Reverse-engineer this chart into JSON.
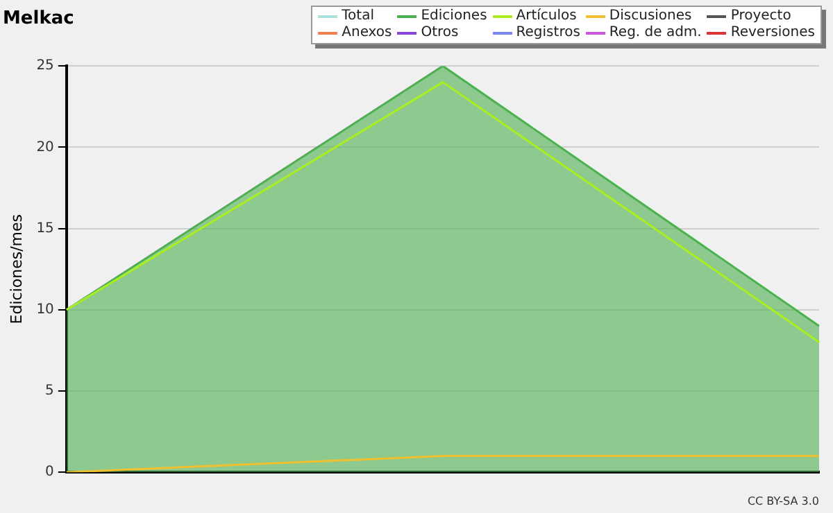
{
  "chart_data": {
    "type": "line",
    "title": "Melkac",
    "ylabel": "Ediciones/mes",
    "categories": [
      null,
      null,
      null
    ],
    "ylim": [
      0,
      25
    ],
    "yticks": [
      0,
      5,
      10,
      15,
      20,
      25
    ],
    "grid": "y",
    "legend": "top right",
    "marker": "none",
    "annotations": [
      "CC BY-SA 3.0"
    ],
    "series": [
      {
        "name": "Total",
        "color": "#a8e0e0",
        "values": [
          null,
          null,
          null
        ]
      },
      {
        "name": "Ediciones",
        "type": "area",
        "color": "#4cb050",
        "values": [
          10,
          25,
          9
        ]
      },
      {
        "name": "Artículos",
        "color": "#aaee22",
        "values": [
          10,
          24,
          8
        ]
      },
      {
        "name": "Discusiones",
        "color": "#f0c030",
        "values": [
          0,
          1,
          1
        ]
      },
      {
        "name": "Proyecto",
        "color": "#555555",
        "values": [
          null,
          null,
          null
        ]
      },
      {
        "name": "Anexos",
        "color": "#f08050",
        "values": [
          null,
          null,
          null
        ]
      },
      {
        "name": "Otros",
        "color": "#8844dd",
        "values": [
          null,
          null,
          null
        ]
      },
      {
        "name": "Registros",
        "color": "#7788ee",
        "values": [
          null,
          null,
          null
        ]
      },
      {
        "name": "Reg. de adm.",
        "color": "#cc55dd",
        "values": [
          null,
          null,
          null
        ]
      },
      {
        "name": "Reversiones",
        "color": "#dd3333",
        "values": [
          null,
          null,
          null
        ]
      }
    ]
  }
}
